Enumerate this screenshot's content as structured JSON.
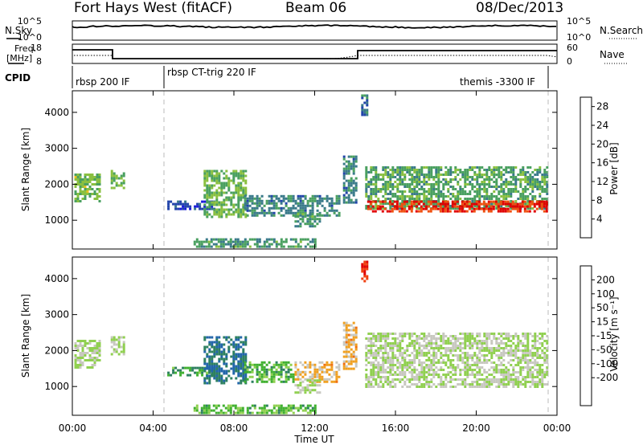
{
  "header": {
    "title": "Fort Hays West (fitACF)",
    "beam": "Beam 06",
    "date": "08/Dec/2013"
  },
  "top_panels": {
    "nsky_label": "N.Sky",
    "nsearch_label": "N.Search",
    "noise_ticks": [
      "10^5",
      "10^0"
    ],
    "freq_label_1": "Freq.",
    "freq_label_2": "[MHz]",
    "freq_ticks": [
      "18",
      "8"
    ],
    "nave_label": "Nave",
    "nave_ticks": [
      "60",
      "0"
    ],
    "cpid_label": "CPID",
    "cpid_segments": [
      {
        "label": "rbsp 200 IF",
        "start_h": 0,
        "end_h": 4.6
      },
      {
        "label": "rbsp CT-trig 220 IF",
        "start_h": 4.6,
        "end_h": 23.6
      },
      {
        "label": "themis -3300 IF",
        "start_h": 23.6,
        "end_h": 24
      }
    ]
  },
  "chart_data": [
    {
      "type": "heatmap",
      "title": "",
      "xlabel": "Time UT",
      "ylabel": "Slant Range [km]",
      "xlim": [
        0,
        24
      ],
      "ylim": [
        200,
        4600
      ],
      "xticks": [
        "00:00",
        "04:00",
        "08:00",
        "12:00",
        "16:00",
        "20:00",
        "00:00"
      ],
      "yticks": [
        1000,
        2000,
        3000,
        4000
      ],
      "colorbar": {
        "label": "Power [dB]",
        "ticks": [
          4,
          8,
          12,
          16,
          20,
          24,
          28
        ],
        "range": [
          0,
          30
        ],
        "colors": [
          "#1a1adc",
          "#2244aa",
          "#3a7a8a",
          "#4aa060",
          "#8ac040",
          "#e8c020",
          "#f09020",
          "#f05010",
          "#e00000"
        ]
      },
      "regions": [
        {
          "t0": 0.1,
          "t1": 1.3,
          "r_lo": 1500,
          "r_hi": 2300,
          "value": 14
        },
        {
          "t0": 1.9,
          "t1": 2.6,
          "r_lo": 1900,
          "r_hi": 2400,
          "value": 13
        },
        {
          "t0": 4.7,
          "t1": 7.0,
          "r_lo": 1300,
          "r_hi": 1550,
          "value": 5
        },
        {
          "t0": 6.5,
          "t1": 8.6,
          "r_lo": 1100,
          "r_hi": 2400,
          "value": 13
        },
        {
          "t0": 8.5,
          "t1": 13.2,
          "r_lo": 1100,
          "r_hi": 1700,
          "value": 9
        },
        {
          "t0": 11.0,
          "t1": 12.2,
          "r_lo": 850,
          "r_hi": 1200,
          "value": 11
        },
        {
          "t0": 13.4,
          "t1": 14.0,
          "r_lo": 1500,
          "r_hi": 2800,
          "value": 9
        },
        {
          "t0": 14.3,
          "t1": 14.6,
          "r_lo": 3900,
          "r_hi": 4500,
          "value": 8
        },
        {
          "t0": 14.5,
          "t1": 23.5,
          "r_lo": 1300,
          "r_hi": 2500,
          "value": 12
        },
        {
          "t0": 14.6,
          "t1": 23.5,
          "r_lo": 1250,
          "r_hi": 1550,
          "value": 27
        },
        {
          "t0": 6.0,
          "t1": 12.0,
          "r_lo": 250,
          "r_hi": 500,
          "value": 11
        }
      ]
    },
    {
      "type": "heatmap",
      "title": "",
      "xlabel": "Time UT",
      "ylabel": "Slant Range [km]",
      "xlim": [
        0,
        24
      ],
      "ylim": [
        200,
        4600
      ],
      "xticks": [
        "00:00",
        "04:00",
        "08:00",
        "12:00",
        "16:00",
        "20:00",
        "00:00"
      ],
      "yticks": [
        1000,
        2000,
        3000,
        4000
      ],
      "colorbar": {
        "label": "Velocity [m s⁻¹]",
        "ticks": [
          200,
          100,
          50,
          15,
          -15,
          -50,
          -100,
          -200
        ],
        "range": [
          -250,
          250
        ],
        "colors": [
          "#1a1adc",
          "#2266aa",
          "#2e8060",
          "#40b030",
          "#90d050",
          "#c8c8c0",
          "#f0a020",
          "#f07010",
          "#f04010",
          "#e00000"
        ]
      },
      "regions": [
        {
          "t0": 0.1,
          "t1": 1.3,
          "r_lo": 1500,
          "r_hi": 2300,
          "value": 0
        },
        {
          "t0": 1.9,
          "t1": 2.6,
          "r_lo": 1900,
          "r_hi": 2400,
          "value": 0
        },
        {
          "t0": 4.7,
          "t1": 7.0,
          "r_lo": 1300,
          "r_hi": 1550,
          "value": -90
        },
        {
          "t0": 6.5,
          "t1": 8.6,
          "r_lo": 1100,
          "r_hi": 2400,
          "value": -150
        },
        {
          "t0": 8.5,
          "t1": 11.0,
          "r_lo": 1100,
          "r_hi": 1700,
          "value": -70
        },
        {
          "t0": 11.0,
          "t1": 13.2,
          "r_lo": 1100,
          "r_hi": 1700,
          "value": 60
        },
        {
          "t0": 11.0,
          "t1": 12.2,
          "r_lo": 850,
          "r_hi": 1200,
          "value": 0
        },
        {
          "t0": 13.4,
          "t1": 14.0,
          "r_lo": 1500,
          "r_hi": 2800,
          "value": 60
        },
        {
          "t0": 14.3,
          "t1": 14.6,
          "r_lo": 3900,
          "r_hi": 4500,
          "value": 200
        },
        {
          "t0": 14.5,
          "t1": 23.5,
          "r_lo": 1000,
          "r_hi": 2500,
          "value": 0
        },
        {
          "t0": 6.0,
          "t1": 12.0,
          "r_lo": 250,
          "r_hi": 500,
          "value": -60
        }
      ]
    }
  ]
}
